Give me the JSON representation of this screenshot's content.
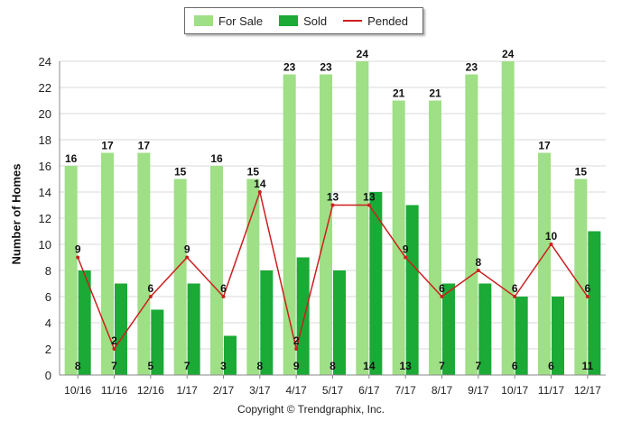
{
  "chart_data": {
    "type": "bar",
    "ylabel": "Number of Homes",
    "ylim": [
      0,
      24
    ],
    "yticks": [
      0,
      2,
      4,
      6,
      8,
      10,
      12,
      14,
      16,
      18,
      20,
      22,
      24
    ],
    "grid": true,
    "legend_position": "top-center",
    "categories": [
      "10/16",
      "11/16",
      "12/16",
      "1/17",
      "2/17",
      "3/17",
      "4/17",
      "5/17",
      "6/17",
      "7/17",
      "8/17",
      "9/17",
      "10/17",
      "11/17",
      "12/17"
    ],
    "series": [
      {
        "name": "For Sale",
        "type": "bar",
        "color": "#9fdf86",
        "values": [
          16,
          17,
          17,
          15,
          16,
          15,
          23,
          23,
          24,
          21,
          21,
          23,
          24,
          17,
          15
        ]
      },
      {
        "name": "Sold",
        "type": "bar",
        "color": "#1aaa35",
        "values": [
          8,
          7,
          5,
          7,
          3,
          8,
          9,
          8,
          14,
          13,
          7,
          7,
          6,
          6,
          11
        ]
      },
      {
        "name": "Pended",
        "type": "line",
        "color": "#cc1f1f",
        "values": [
          9,
          2,
          6,
          9,
          6,
          14,
          2,
          13,
          13,
          9,
          6,
          8,
          6,
          10,
          6
        ]
      }
    ],
    "footer": "Copyright © Trendgraphix, Inc."
  }
}
